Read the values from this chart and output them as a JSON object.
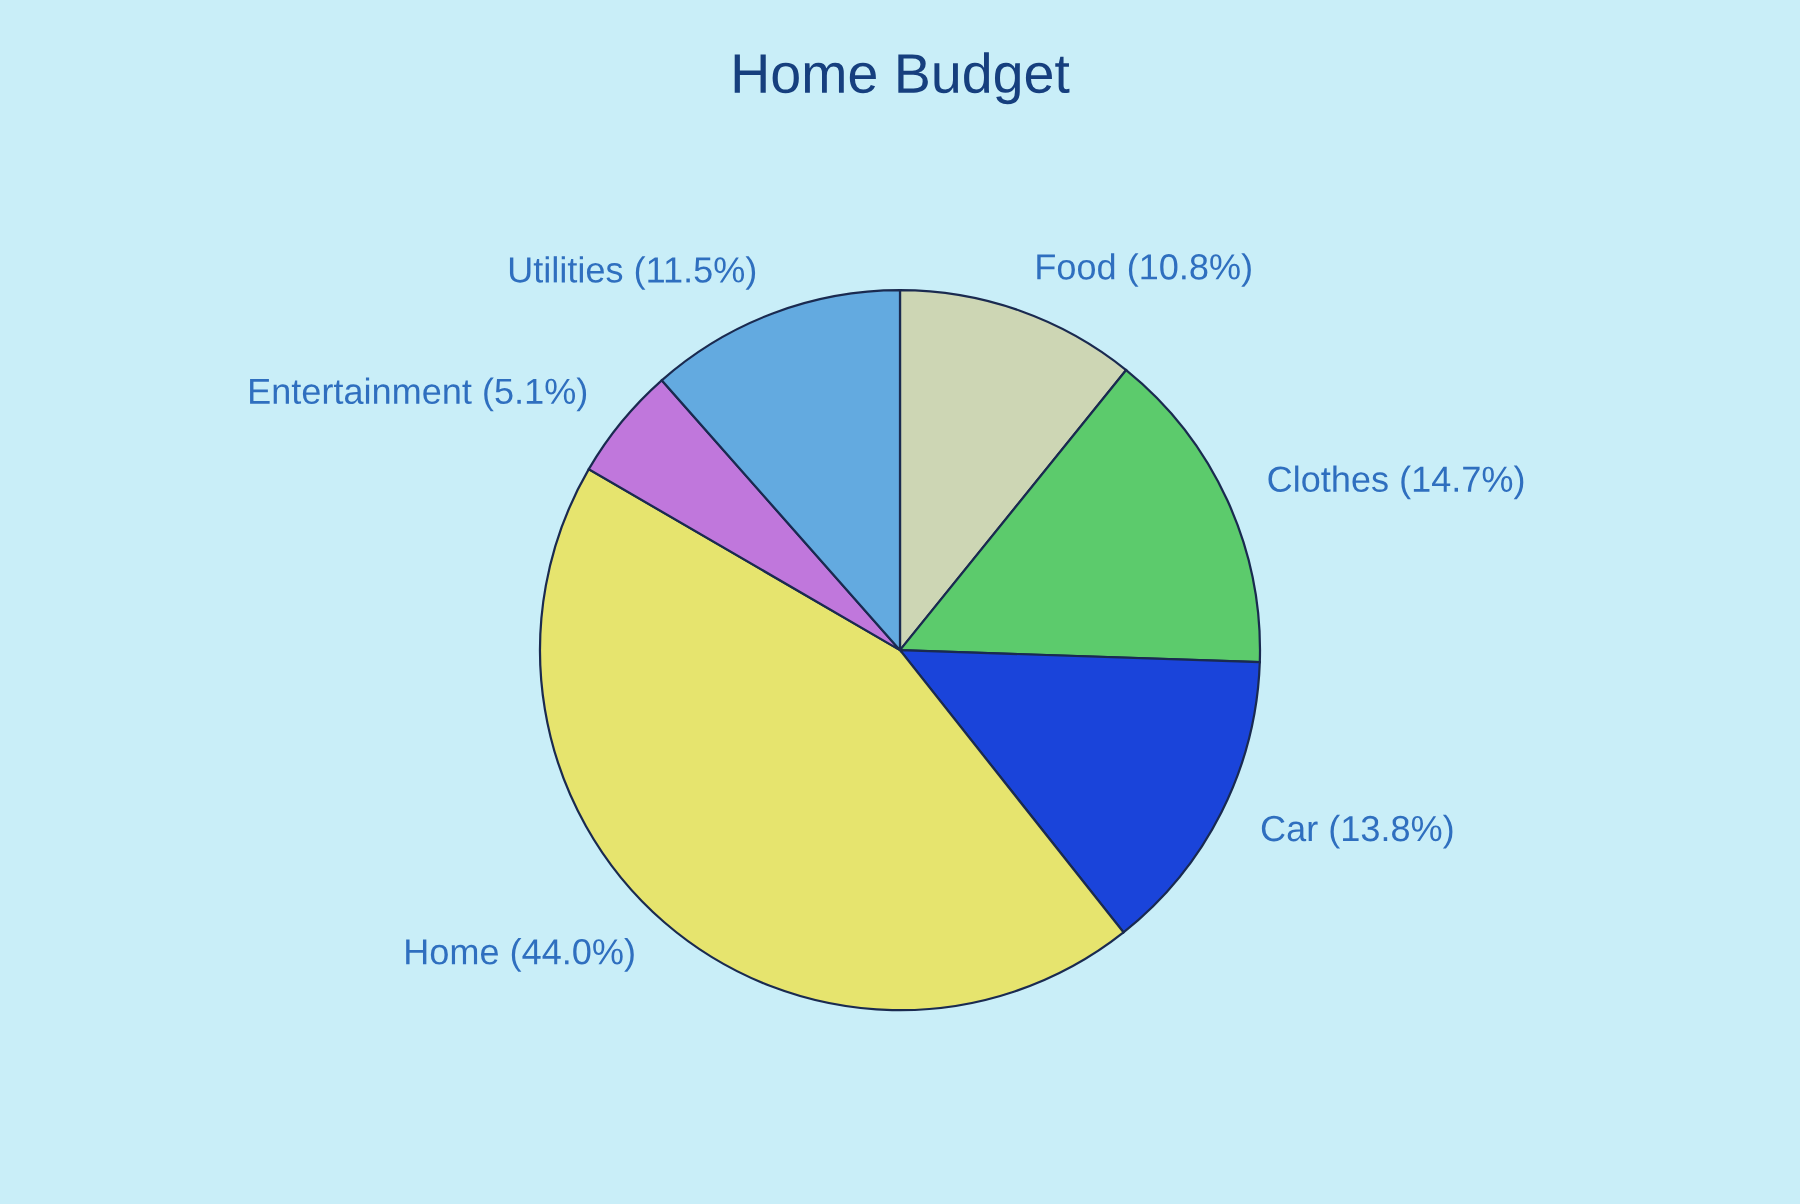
{
  "chart_data": {
    "type": "pie",
    "title": "Home Budget",
    "categories": [
      "Food",
      "Clothes",
      "Car",
      "Home",
      "Entertainment",
      "Utilities"
    ],
    "values": [
      10.8,
      14.7,
      13.8,
      44.0,
      5.1,
      11.5
    ],
    "value_labels": [
      "(10.8%)",
      "(14.7%)",
      "(13.8%)",
      "(44.0%)",
      "(5.1%)",
      "(11.5%)"
    ],
    "colors": [
      "#cdd6b4",
      "#5ccb6c",
      "#1a44da",
      "#e6e46e",
      "#c077dc",
      "#63aae0"
    ],
    "legend": false
  }
}
